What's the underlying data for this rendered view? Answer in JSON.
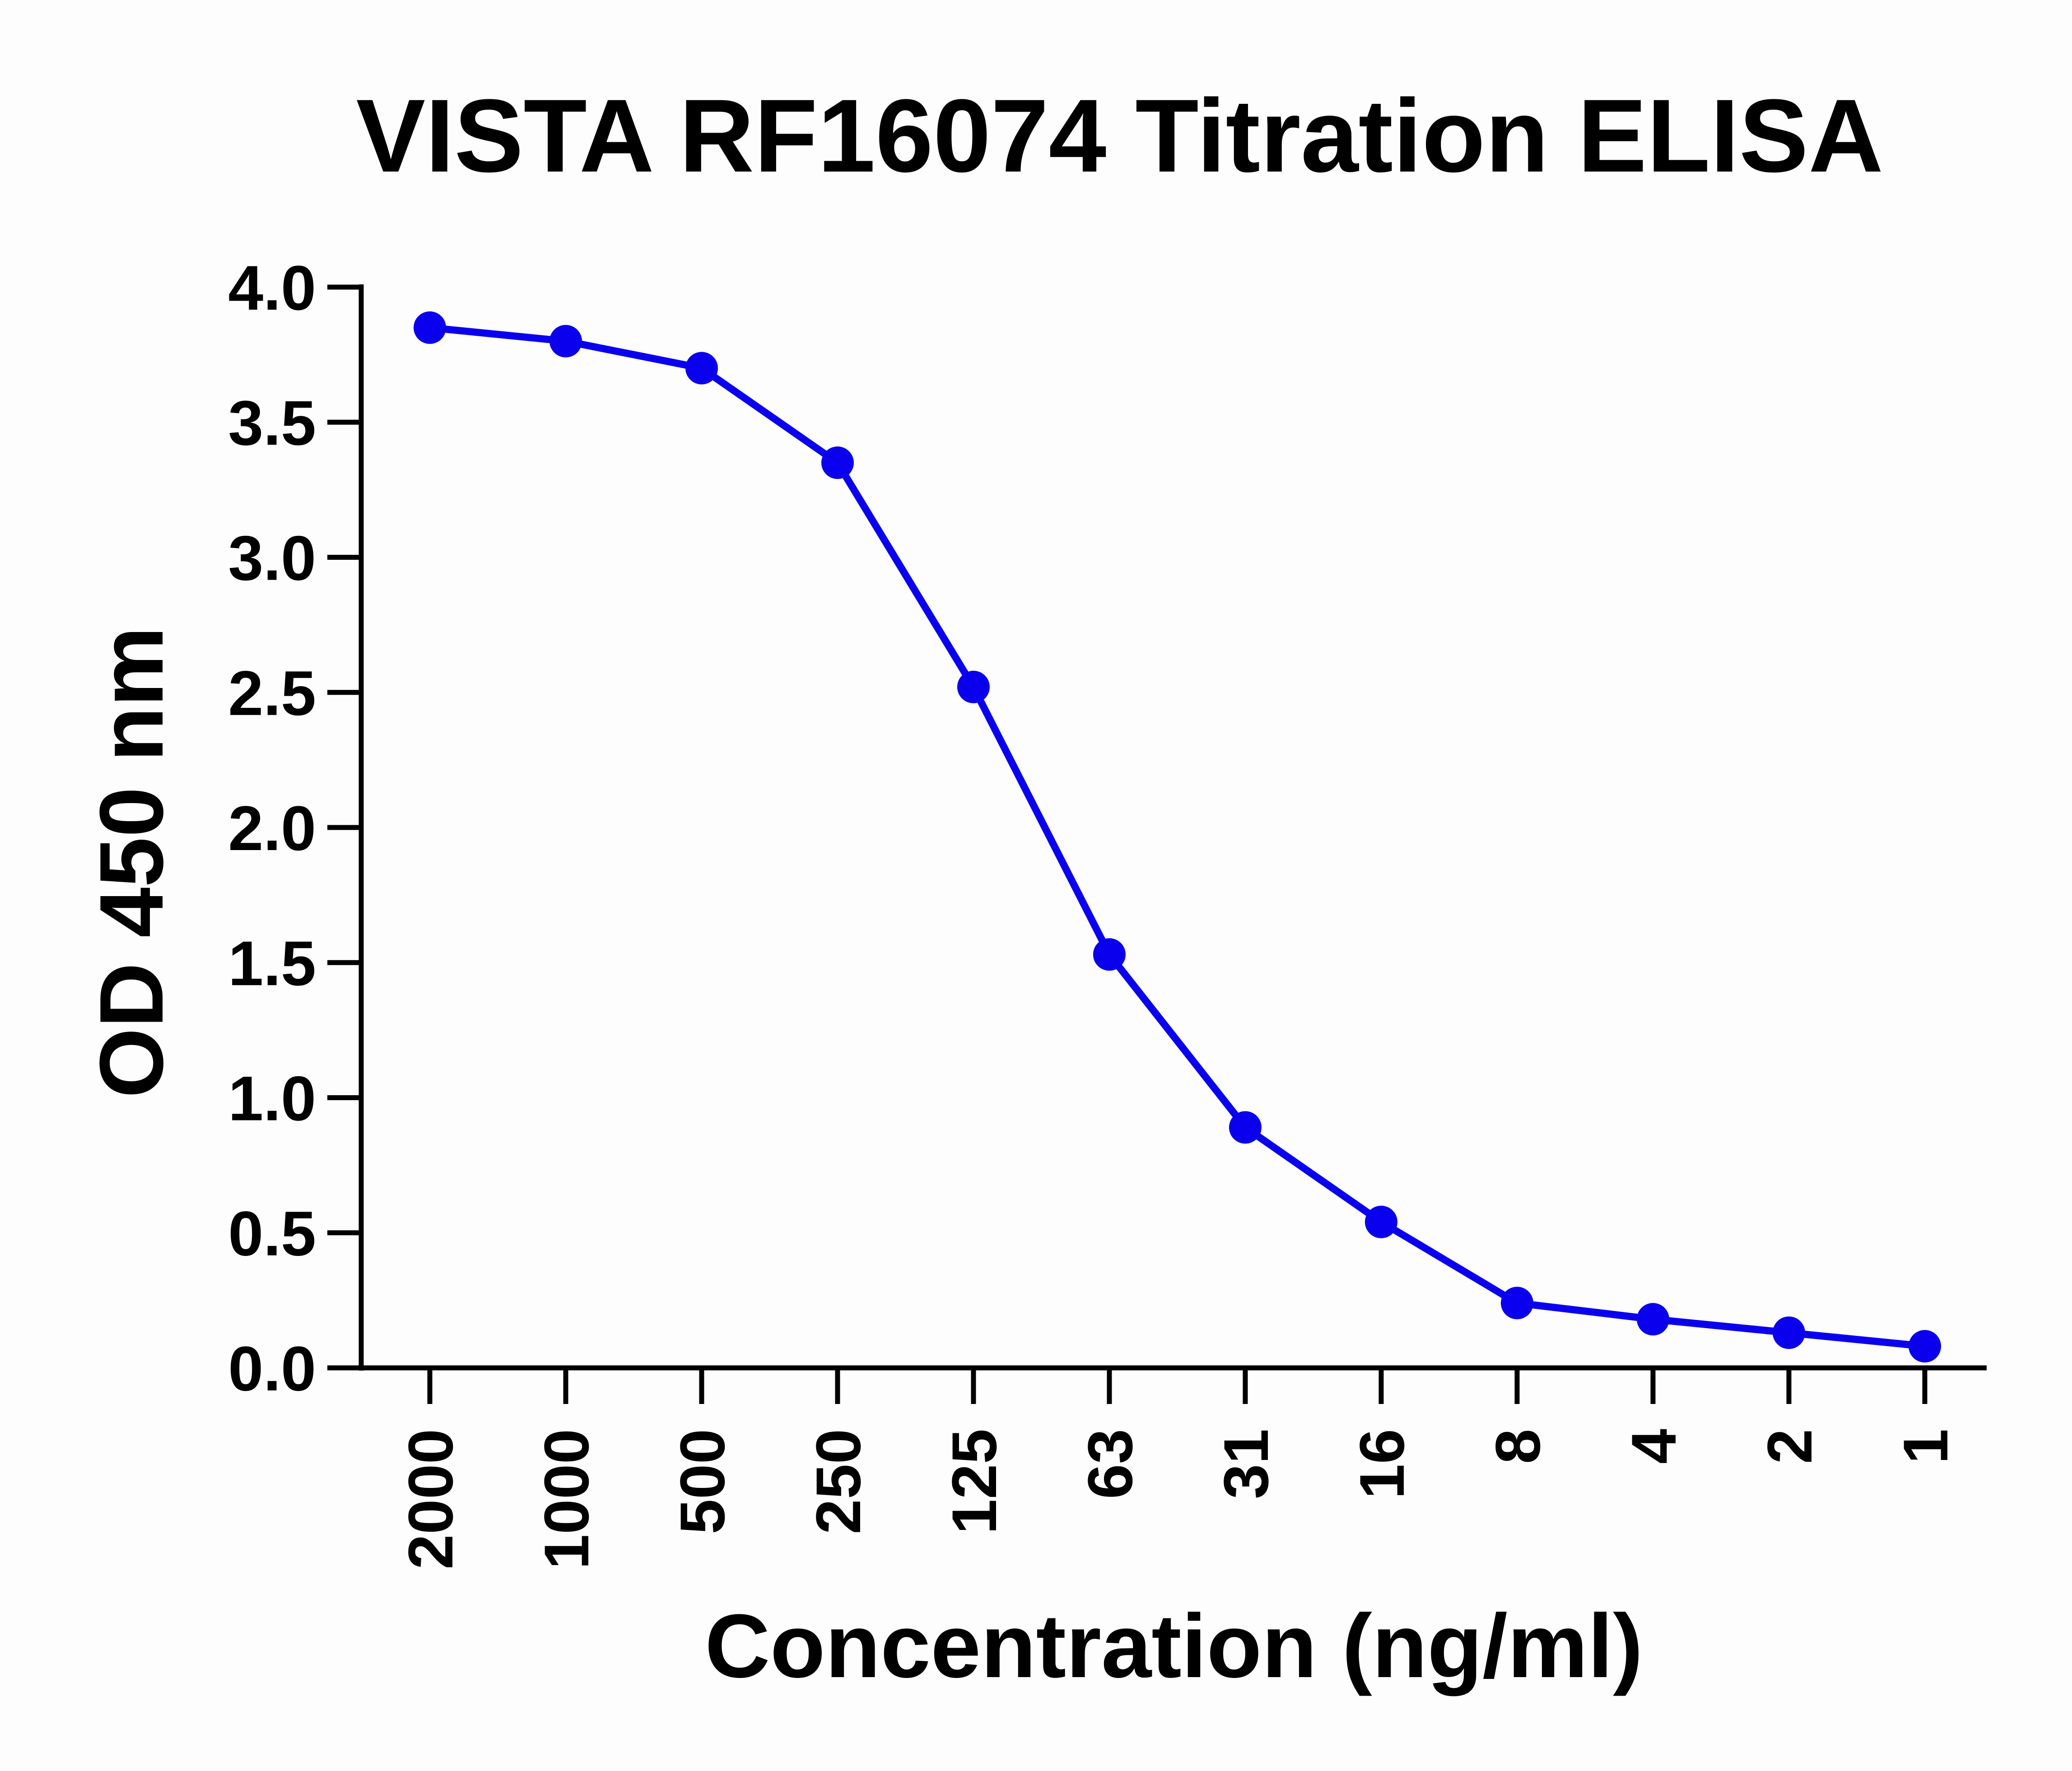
{
  "chart_data": {
    "type": "line",
    "title": "VISTA RF16074 Titration ELISA",
    "xlabel": "Concentration (ng/ml)",
    "ylabel": "OD 450 nm",
    "categories": [
      "2000",
      "1000",
      "500",
      "250",
      "125",
      "63",
      "31",
      "16",
      "8",
      "4",
      "2",
      "1"
    ],
    "series": [
      {
        "name": "VISTA RF16074",
        "color": "#0a00ee",
        "values": [
          3.85,
          3.8,
          3.7,
          3.35,
          2.52,
          1.53,
          0.89,
          0.54,
          0.24,
          0.18,
          0.13,
          0.08
        ]
      }
    ],
    "ylim": [
      0,
      4
    ],
    "yticks": [
      "0.0",
      "0.5",
      "1.0",
      "1.5",
      "2.0",
      "2.5",
      "3.0",
      "3.5",
      "4.0"
    ],
    "grid": false,
    "legend": "none"
  }
}
